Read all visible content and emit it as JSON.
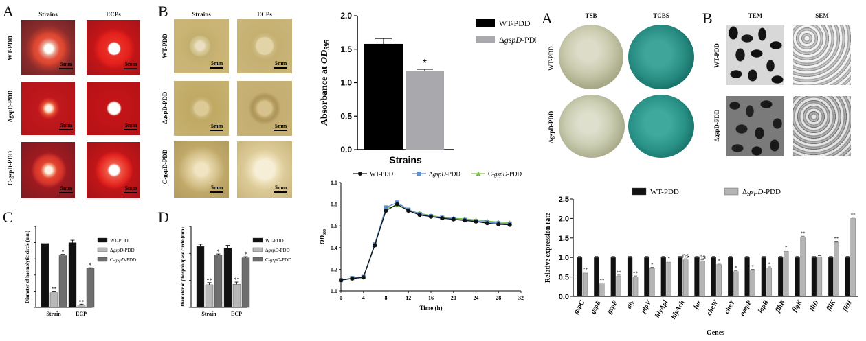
{
  "panelA": {
    "label": "A",
    "col_headers": [
      "Strains",
      "ECPs"
    ],
    "row_labels": [
      "WT-PDD",
      "ΔgspD-PDD",
      "C-gspD-PDD"
    ],
    "scale": "5mm"
  },
  "panelB": {
    "label": "B",
    "col_headers": [
      "Strains",
      "ECPs"
    ],
    "row_labels": [
      "WT-PDD",
      "ΔgspD-PDD",
      "C-gspD-PDD"
    ],
    "scale": "5mm"
  },
  "panelC": {
    "label": "C"
  },
  "panelD": {
    "label": "D"
  },
  "panelA2": {
    "label": "A",
    "col_headers": [
      "TSB",
      "TCBS"
    ],
    "row_labels": [
      "WT-PDD",
      "ΔgspD-PDD"
    ]
  },
  "panelB2": {
    "label": "B",
    "col_headers": [
      "TEM",
      "SEM"
    ],
    "row_labels": [
      "WT-PDD",
      "ΔgspD-PDD"
    ]
  },
  "chart_data": [
    {
      "id": "haemolytic",
      "type": "bar",
      "ylabel": "Diameter of haemolytic circle (mm)",
      "categories": [
        "Strain",
        "ECP"
      ],
      "ylim": [
        0,
        10
      ],
      "series": [
        {
          "name": "WT-PDD",
          "values": [
            7.9,
            8.0
          ],
          "errors": [
            0.2,
            0.3
          ],
          "marks": [
            "",
            ""
          ],
          "color": "#111111"
        },
        {
          "name": "ΔgspD-PDD",
          "values": [
            1.8,
            0.3
          ],
          "errors": [
            0.2,
            0.1
          ],
          "marks": [
            "**",
            "**"
          ],
          "color": "#b8b8b8"
        },
        {
          "name": "C-gspD-PDD",
          "values": [
            6.4,
            4.8
          ],
          "errors": [
            0.15,
            0.1
          ],
          "marks": [
            "*",
            "*"
          ],
          "color": "#6e6e6e"
        }
      ]
    },
    {
      "id": "phospholipase",
      "type": "bar",
      "ylabel": "Diameter of phospholipase circle (mm)",
      "categories": [
        "Strain",
        "ECP"
      ],
      "ylim": [
        0,
        15
      ],
      "series": [
        {
          "name": "WT-PDD",
          "values": [
            11.3,
            11.0
          ],
          "errors": [
            0.4,
            0.5
          ],
          "marks": [
            "",
            ""
          ],
          "color": "#111111"
        },
        {
          "name": "ΔgspD-PDD",
          "values": [
            4.2,
            4.3
          ],
          "errors": [
            0.4,
            0.4
          ],
          "marks": [
            "**",
            "**"
          ],
          "color": "#b8b8b8"
        },
        {
          "name": "C-gspD-PDD",
          "values": [
            9.7,
            9.2
          ],
          "errors": [
            0.2,
            0.2
          ],
          "marks": [
            "*",
            "*"
          ],
          "color": "#6e6e6e"
        }
      ]
    },
    {
      "id": "absorbance",
      "type": "bar",
      "xlabel": "Strains",
      "ylabel": "Absorbance at OD595",
      "ylim": [
        0,
        2.0
      ],
      "ticks": [
        "0.0",
        "0.5",
        "1.0",
        "1.5",
        "2.0"
      ],
      "series": [
        {
          "name": "WT-PDD",
          "value": 1.58,
          "error": 0.08,
          "mark": "",
          "color": "#000000"
        },
        {
          "name": "ΔgspD-PDD",
          "value": 1.17,
          "error": 0.03,
          "mark": "*",
          "color": "#a9a9ad"
        }
      ]
    },
    {
      "id": "growth",
      "type": "line",
      "xlabel": "Time (h)",
      "ylabel": "OD600",
      "xlim": [
        0,
        32
      ],
      "ylim": [
        0,
        1.0
      ],
      "xticks": [
        "0",
        "4",
        "8",
        "12",
        "16",
        "20",
        "24",
        "28",
        "32"
      ],
      "yticks": [
        "0.0",
        "0.2",
        "0.4",
        "0.6",
        "0.8",
        "1.0"
      ],
      "x": [
        0,
        2,
        4,
        6,
        8,
        10,
        12,
        14,
        16,
        18,
        20,
        22,
        24,
        26,
        28,
        30
      ],
      "series": [
        {
          "name": "WT-PDD",
          "values": [
            0.1,
            0.115,
            0.125,
            0.42,
            0.74,
            0.8,
            0.74,
            0.7,
            0.685,
            0.67,
            0.66,
            0.65,
            0.64,
            0.625,
            0.615,
            0.61
          ],
          "color": "#111111",
          "marker": "circle"
        },
        {
          "name": "ΔgspD-PDD",
          "values": [
            0.1,
            0.12,
            0.13,
            0.43,
            0.77,
            0.815,
            0.75,
            0.71,
            0.69,
            0.675,
            0.665,
            0.655,
            0.645,
            0.635,
            0.625,
            0.62
          ],
          "color": "#5b8fd0",
          "marker": "square"
        },
        {
          "name": "C-gspD-PDD",
          "values": [
            0.1,
            0.118,
            0.128,
            0.425,
            0.76,
            0.79,
            0.745,
            0.715,
            0.695,
            0.68,
            0.67,
            0.665,
            0.655,
            0.645,
            0.635,
            0.63
          ],
          "color": "#7cc243",
          "marker": "triangle"
        }
      ]
    },
    {
      "id": "expression",
      "type": "bar",
      "xlabel": "Genes",
      "ylabel": "Relative expression rate",
      "ylim": [
        0,
        2.5
      ],
      "yticks": [
        "0.0",
        "0.5",
        "1.0",
        "1.5",
        "2.0",
        "2.5"
      ],
      "categories": [
        "gspC",
        "gspE",
        "gspF",
        "dly",
        "plpV",
        "hlyApl",
        "hlyAch",
        "fur",
        "cheW",
        "cheY",
        "ompP",
        "lapB",
        "flhB",
        "flgK",
        "fliD",
        "fliK",
        "fliH"
      ],
      "series": [
        {
          "name": "WT-PDD",
          "values": [
            1,
            1,
            1,
            1,
            1,
            1,
            1,
            1,
            1,
            1,
            1,
            1,
            1,
            1,
            1,
            1,
            1
          ],
          "color": "#111111"
        },
        {
          "name": "ΔgspD-PDD",
          "values": [
            0.6,
            0.32,
            0.52,
            0.5,
            0.72,
            0.88,
            0.94,
            0.91,
            0.82,
            0.64,
            0.67,
            0.73,
            1.16,
            1.52,
            1.02,
            1.39,
            2.0
          ],
          "marks": [
            "**",
            "**",
            "**",
            "**",
            "*",
            "*",
            "ns",
            "ns",
            "*",
            "*",
            "*",
            "*",
            "*",
            "**",
            "",
            "**",
            "**"
          ],
          "color": "#b5b5b5"
        }
      ]
    }
  ]
}
